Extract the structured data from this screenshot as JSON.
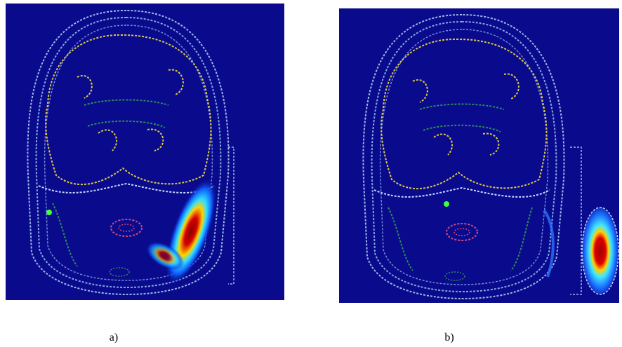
{
  "figure": {
    "panels": [
      {
        "label": "a)"
      },
      {
        "label": "b)"
      }
    ]
  }
}
